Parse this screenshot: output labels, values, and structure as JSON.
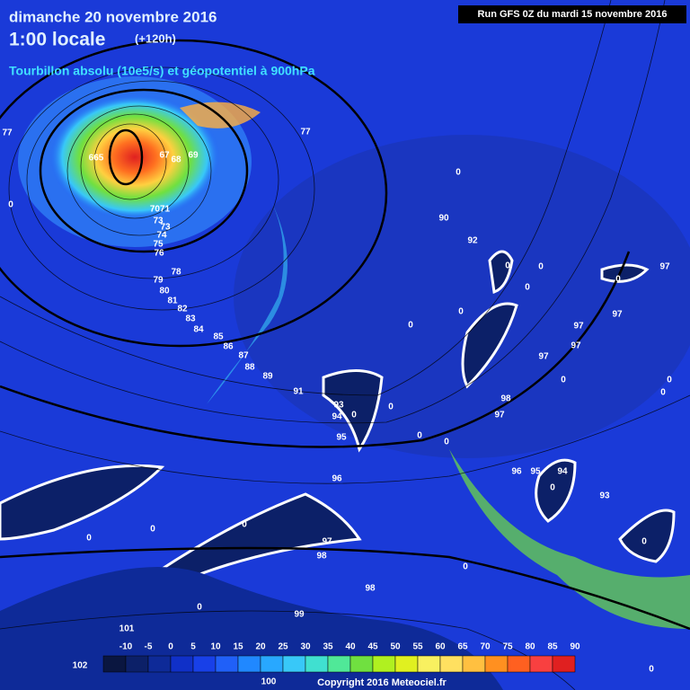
{
  "header": {
    "date": "dimanche 20 novembre 2016",
    "time": "1:00 locale",
    "lead": "(+120h)",
    "field": "Tourbillon absolu (10e5/s) et géopotentiel à 900hPa",
    "run": "Run GFS 0Z du mardi 15 novembre 2016"
  },
  "colorbar": {
    "labels": [
      -10,
      -5,
      0,
      5,
      10,
      15,
      20,
      25,
      30,
      35,
      40,
      45,
      50,
      55,
      60,
      65,
      70,
      75,
      80,
      85,
      90
    ],
    "colors": [
      "#0a1640",
      "#0c2068",
      "#0e2a98",
      "#1030c8",
      "#1840e8",
      "#2060f8",
      "#2088ff",
      "#28a8ff",
      "#38c8f8",
      "#40e0d0",
      "#50e898",
      "#70e040",
      "#b0f020",
      "#e0f020",
      "#f8f060",
      "#ffe060",
      "#ffc040",
      "#ff9020",
      "#ff6020",
      "#f84040",
      "#e02020"
    ]
  },
  "contour_labels": [
    "77",
    "0",
    "665",
    "67",
    "68",
    "69",
    "7071",
    "73",
    "73",
    "74",
    "75",
    "76",
    "78",
    "79",
    "80",
    "81",
    "82",
    "83",
    "84",
    "85",
    "86",
    "87",
    "88",
    "89",
    "91",
    "77",
    "0",
    "90",
    "92",
    "0",
    "0",
    "0",
    "0",
    "0",
    "0",
    "97",
    "97",
    "97",
    "97",
    "97",
    "0",
    "0",
    "0",
    "98",
    "97",
    "93",
    "94",
    "0",
    "0",
    "0",
    "0",
    "95",
    "96",
    "96",
    "95",
    "94",
    "0",
    "93",
    "0",
    "0",
    "0",
    "97",
    "98",
    "0",
    "0",
    "98",
    "0",
    "99",
    "101",
    "102",
    "100",
    "0"
  ],
  "copyright": "Copyright 2016 Meteociel.fr"
}
